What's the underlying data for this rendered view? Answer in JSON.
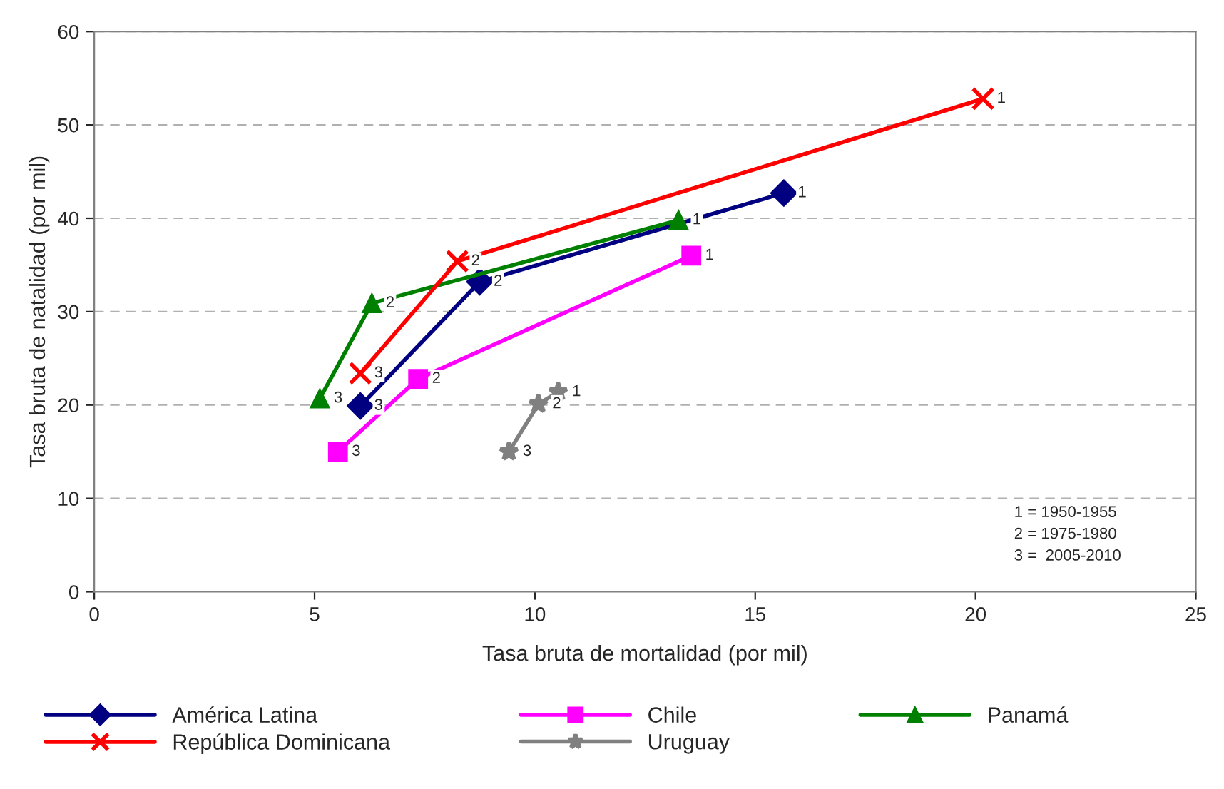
{
  "chart_data": {
    "type": "line",
    "xlabel": "Tasa bruta de mortalidad (por mil)",
    "ylabel": "Tasa bruta de natalidad (por mil)",
    "xlim": [
      0,
      25
    ],
    "xticks": [
      0,
      5,
      10,
      15,
      20,
      25
    ],
    "ylim": [
      0,
      60
    ],
    "yticks": [
      0,
      10,
      20,
      30,
      40,
      50,
      60
    ],
    "grid": "y",
    "legend": "bottom",
    "series": [
      {
        "name": "América Latina",
        "color": "#000080",
        "marker": "diamond",
        "x": [
          15.65,
          8.75,
          6.04
        ],
        "values": [
          42.7,
          33.2,
          19.9
        ]
      },
      {
        "name": "Chile",
        "color": "#ff00ff",
        "marker": "square",
        "x": [
          13.55,
          7.35,
          5.53
        ],
        "values": [
          36.0,
          22.8,
          15.0
        ]
      },
      {
        "name": "Panamá",
        "color": "#008000",
        "marker": "triangle",
        "x": [
          13.26,
          6.3,
          5.12
        ],
        "values": [
          39.8,
          30.9,
          20.7
        ]
      },
      {
        "name": "República Dominicana",
        "color": "#ff0000",
        "marker": "cross",
        "x": [
          20.17,
          8.24,
          6.04
        ],
        "values": [
          52.8,
          35.4,
          23.4
        ]
      },
      {
        "name": "Uruguay",
        "color": "#808080",
        "marker": "star",
        "x": [
          10.53,
          10.08,
          9.41
        ],
        "values": [
          21.4,
          20.1,
          15.0
        ]
      }
    ],
    "annotations": [
      "1 = 1950-1955\n2 = 1975-1980\n3 =  2005-2010",
      {
        "text": "1",
        "x": 15.65,
        "y": 42.7
      },
      {
        "text": "2",
        "x": 8.75,
        "y": 33.2
      },
      {
        "text": "3",
        "x": 6.04,
        "y": 19.9
      },
      {
        "text": "1",
        "x": 13.55,
        "y": 36.0
      },
      {
        "text": "2",
        "x": 7.35,
        "y": 22.8
      },
      {
        "text": "3",
        "x": 5.53,
        "y": 15.0
      },
      {
        "text": "1",
        "x": 13.26,
        "y": 39.8
      },
      {
        "text": "2",
        "x": 6.3,
        "y": 30.9
      },
      {
        "text": "3",
        "x": 5.12,
        "y": 20.7
      },
      {
        "text": "1",
        "x": 20.17,
        "y": 52.8
      },
      {
        "text": "2",
        "x": 8.24,
        "y": 35.4
      },
      {
        "text": "3",
        "x": 6.04,
        "y": 23.4
      },
      {
        "text": "1",
        "x": 10.53,
        "y": 21.4
      },
      {
        "text": "2",
        "x": 10.08,
        "y": 20.1
      },
      {
        "text": "3",
        "x": 9.41,
        "y": 15.0
      }
    ]
  }
}
